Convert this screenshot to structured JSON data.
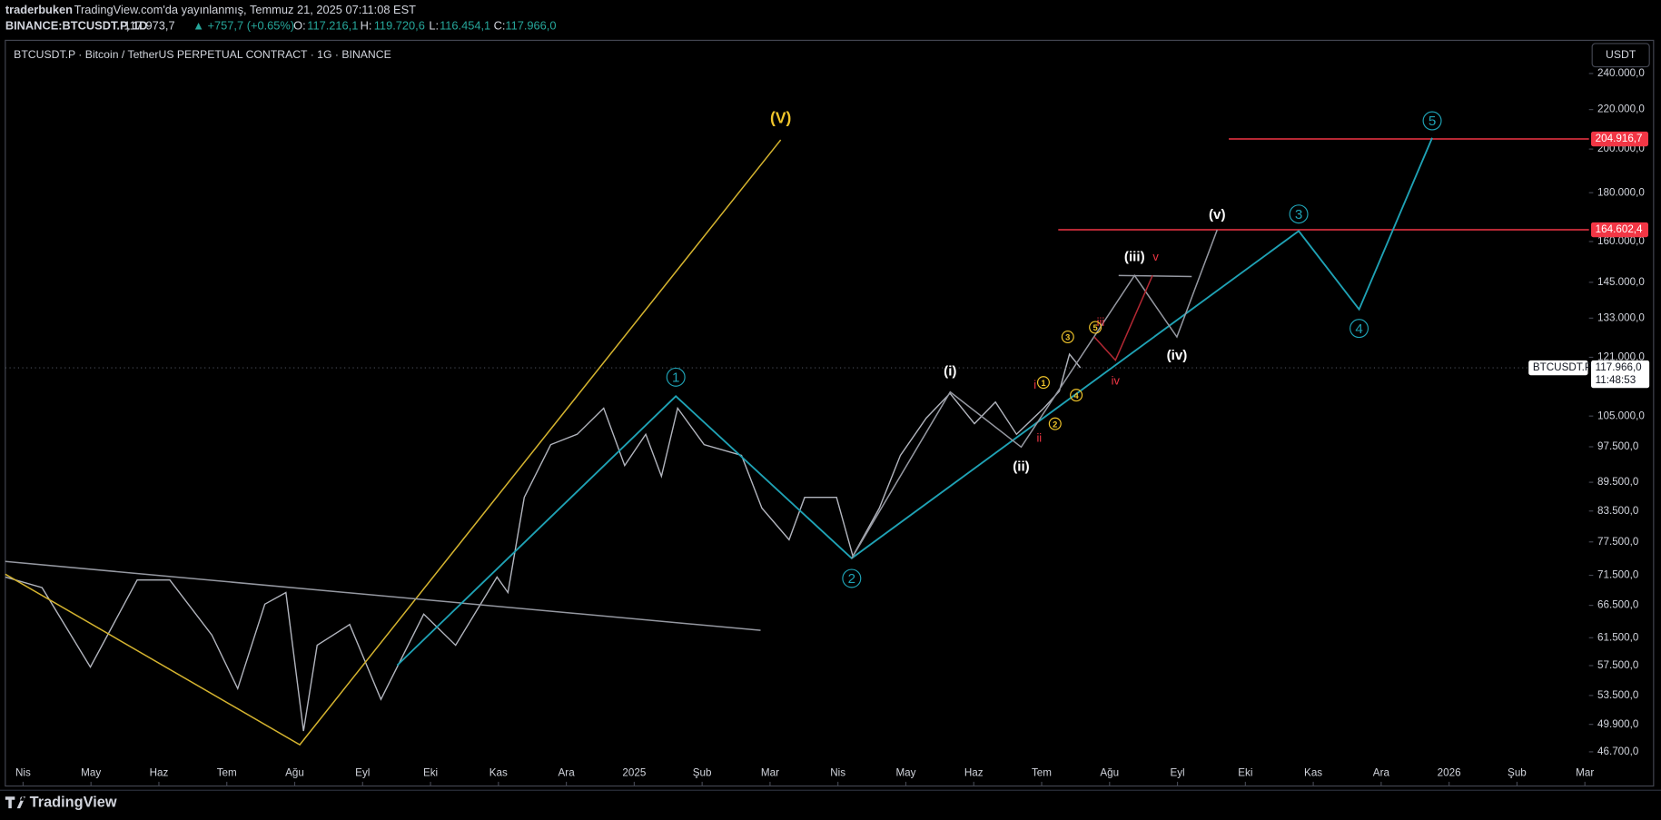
{
  "header": {
    "author": "traderbuken",
    "published": "TradingView.com'da yayınlanmış, Temmuz 21, 2025 07:11:08 EST",
    "symbol": "BINANCE:BTCUSDT.P, 1D",
    "last": "117.973,7",
    "change": "▲ +757,7 (+0.65%)",
    "open_label": "O:",
    "open": "117.216,1",
    "high_label": "H:",
    "high": "119.720,6",
    "low_label": "L:",
    "low": "116.454,1",
    "close_label": "C:",
    "close": "117.966,0"
  },
  "chart_data": {
    "type": "line",
    "title": "BTCUSDT.P · Bitcoin / TetherUS PERPETUAL CONTRACT · 1G · BINANCE",
    "currency": "USDT",
    "x": [
      -0.26,
      0.28,
      0.99,
      1.68,
      2.16,
      2.78,
      3.16,
      3.56,
      3.87,
      4.13,
      4.33,
      4.81,
      5.04,
      5.27,
      5.9,
      6.37,
      6.98,
      7.14,
      7.38,
      7.77,
      8.16,
      8.55,
      8.86,
      9.17,
      9.4,
      9.64,
      10.03,
      10.58,
      10.88,
      11.28,
      11.51,
      11.98,
      12.22,
      12.61,
      12.92,
      13.3,
      13.65,
      14.01,
      14.32,
      14.63,
      15.03,
      15.26,
      15.41,
      15.57
    ],
    "series": [
      {
        "name": "BTCUSDT.P",
        "color": "#b2b5be",
        "values": [
          71200,
          69400,
          57300,
          70700,
          70700,
          61900,
          54400,
          66700,
          68600,
          49100,
          60400,
          63500,
          58000,
          53000,
          65100,
          60400,
          71200,
          68600,
          86300,
          98000,
          100500,
          107000,
          93200,
          100500,
          90800,
          107000,
          98000,
          95500,
          84100,
          77900,
          86300,
          86300,
          74900,
          84100,
          95500,
          104500,
          110900,
          103100,
          108600,
          100500,
          107000,
          111500,
          121900,
          118000
        ]
      }
    ],
    "xlim": [
      -0.34,
      23.06
    ],
    "xticks": [
      {
        "value": 0,
        "label": "Nis"
      },
      {
        "value": 1,
        "label": "May"
      },
      {
        "value": 2,
        "label": "Haz"
      },
      {
        "value": 3,
        "label": "Tem"
      },
      {
        "value": 4,
        "label": "Ağu"
      },
      {
        "value": 5,
        "label": "Eyl"
      },
      {
        "value": 6,
        "label": "Eki"
      },
      {
        "value": 7,
        "label": "Kas"
      },
      {
        "value": 8,
        "label": "Ara"
      },
      {
        "value": 9,
        "label": "2025"
      },
      {
        "value": 10,
        "label": "Şub"
      },
      {
        "value": 11,
        "label": "Mar"
      },
      {
        "value": 12,
        "label": "Nis"
      },
      {
        "value": 13,
        "label": "May"
      },
      {
        "value": 14,
        "label": "Haz"
      },
      {
        "value": 15,
        "label": "Tem"
      },
      {
        "value": 16,
        "label": "Ağu"
      },
      {
        "value": 17,
        "label": "Eyl"
      },
      {
        "value": 18,
        "label": "Eki"
      },
      {
        "value": 19,
        "label": "Kas"
      },
      {
        "value": 20,
        "label": "Ara"
      },
      {
        "value": 21,
        "label": "2026"
      },
      {
        "value": 22,
        "label": "Şub"
      },
      {
        "value": 23,
        "label": "Mar"
      }
    ],
    "ylim": [
      43000,
      260000
    ],
    "yscale": "log",
    "yticks": [
      {
        "value": 240000,
        "label": "240.000,0"
      },
      {
        "value": 220000,
        "label": "220.000,0"
      },
      {
        "value": 200000,
        "label": "200.000,0"
      },
      {
        "value": 180000,
        "label": "180.000,0"
      },
      {
        "value": 160000,
        "label": "160.000,0"
      },
      {
        "value": 145000,
        "label": "145.000,0"
      },
      {
        "value": 133000,
        "label": "133.000,0"
      },
      {
        "value": 121000,
        "label": "121.000,0"
      },
      {
        "value": 105000,
        "label": "105.000,0"
      },
      {
        "value": 97500,
        "label": "97.500,0"
      },
      {
        "value": 89500,
        "label": "89.500,0"
      },
      {
        "value": 83500,
        "label": "83.500,0"
      },
      {
        "value": 77500,
        "label": "77.500,0"
      },
      {
        "value": 71500,
        "label": "71.500,0"
      },
      {
        "value": 66500,
        "label": "66.500,0"
      },
      {
        "value": 61500,
        "label": "61.500,0"
      },
      {
        "value": 57500,
        "label": "57.500,0"
      },
      {
        "value": 53500,
        "label": "53.500,0"
      },
      {
        "value": 49900,
        "label": "49.900,0"
      },
      {
        "value": 46700,
        "label": "46.700,0"
      }
    ],
    "price_lines": [
      {
        "value": 204916.7,
        "label": "204.916,7",
        "color": "#f23645"
      },
      {
        "value": 164602.4,
        "label": "164.602,4",
        "color": "#f23645"
      }
    ],
    "last_price": {
      "value": 117966,
      "label": "117.966,0",
      "countdown": "11:48:53"
    },
    "annotations": [
      "(V)",
      "1",
      "2",
      "3",
      "4",
      "5",
      "(i)",
      "(ii)",
      "(iii)",
      "(iv)",
      "(v)",
      "i",
      "ii",
      "iii",
      "iv",
      "v",
      "1",
      "2",
      "3",
      "4",
      "5"
    ]
  },
  "footer": {
    "brand": "TradingView"
  }
}
